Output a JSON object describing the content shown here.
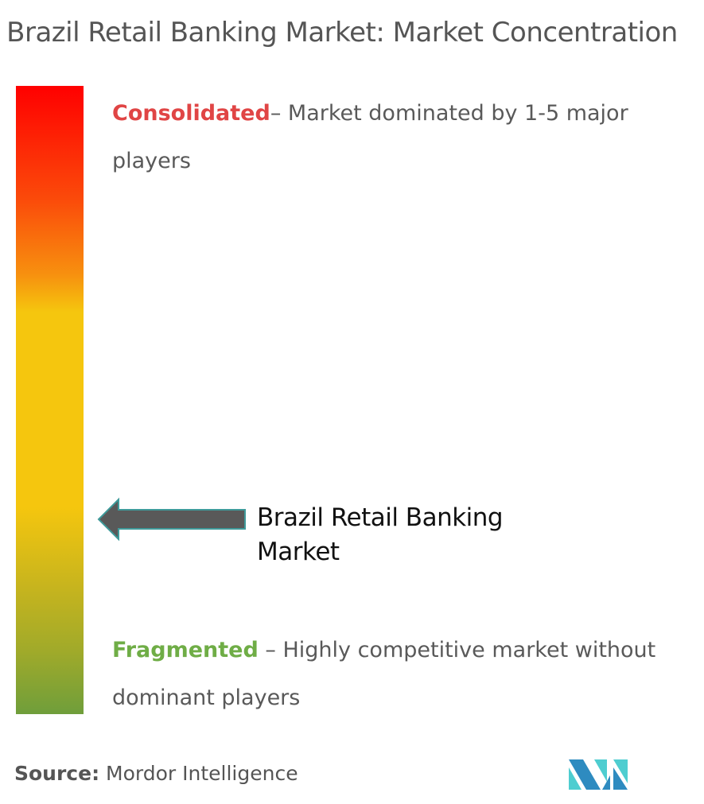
{
  "chart_data": {
    "type": "scale",
    "title": "Brazil Retail Banking Market: Market Concentration",
    "scale_top": {
      "label": "Consolidated",
      "description": "– Market dominated by 1-5 major players",
      "color": "#e04545"
    },
    "scale_bottom": {
      "label": "Fragmented",
      "description": " – Highly competitive market without dominant players",
      "color": "#6fad46"
    },
    "marker": {
      "label": "Brazil Retail Banking Market",
      "position_from_consolidated": 0.69
    },
    "gradient_colors": [
      "#ff0000",
      "#f7900f",
      "#f5c60e",
      "#6f9e3b"
    ]
  },
  "source": {
    "label": "Source:",
    "text": " Mordor Intelligence"
  },
  "logo": {
    "text": "MI",
    "colors": [
      "#2e8bc0",
      "#4ecdd0"
    ]
  }
}
